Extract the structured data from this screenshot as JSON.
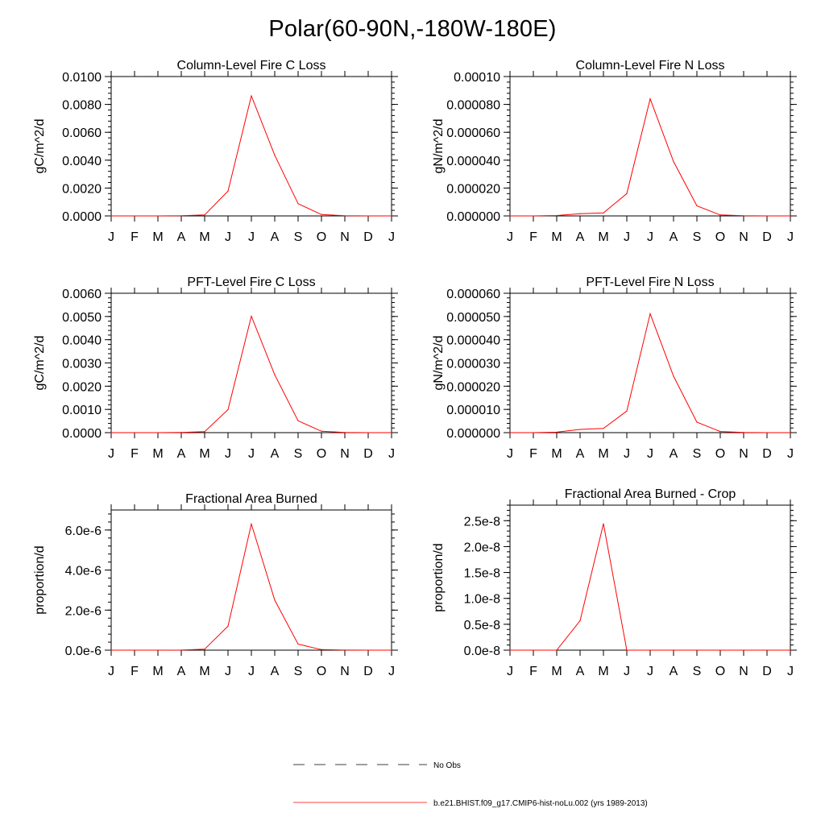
{
  "title": "Polar(60-90N,-180W-180E)",
  "months": [
    "J",
    "F",
    "M",
    "A",
    "M",
    "J",
    "J",
    "A",
    "S",
    "O",
    "N",
    "D",
    "J"
  ],
  "colors": {
    "model": "#ff0000",
    "obs": "#000000",
    "axis": "#000000"
  },
  "legend": {
    "obs_label": "No Obs",
    "model_label": "b.e21.BHIST.f09_g17.CMIP6-hist-noLu.002 (yrs 1989-2013)"
  },
  "chart_data": [
    {
      "type": "line",
      "title": "Column-Level Fire C Loss",
      "ylabel": "gC/m^2/d",
      "ylim": [
        0,
        0.01
      ],
      "yticks": [
        0,
        0.002,
        0.004,
        0.006,
        0.008,
        0.01
      ],
      "ytick_labels": [
        "0.0000",
        "0.0020",
        "0.0040",
        "0.0060",
        "0.0080",
        "0.0100"
      ],
      "grid": false,
      "series": [
        {
          "name": "b.e21.BHIST.f09_g17.CMIP6-hist-noLu.002 (yrs 1989-2013)",
          "values": [
            0,
            0,
            0,
            1e-05,
            7e-05,
            0.00178,
            0.00861,
            0.00435,
            0.00088,
            0.0001,
            1e-05,
            0,
            0
          ]
        }
      ]
    },
    {
      "type": "line",
      "title": "Column-Level Fire N Loss",
      "ylabel": "gN/m^2/d",
      "ylim": [
        0,
        0.0001
      ],
      "yticks": [
        0,
        2e-05,
        4e-05,
        6e-05,
        8e-05,
        0.0001
      ],
      "ytick_labels": [
        "0.000000",
        "0.000020",
        "0.000040",
        "0.000060",
        "0.000080",
        "0.00010"
      ],
      "grid": false,
      "series": [
        {
          "name": "b.e21.BHIST.f09_g17.CMIP6-hist-noLu.002 (yrs 1989-2013)",
          "values": [
            0,
            0,
            3e-07,
            1.6e-06,
            2.2e-06,
            1.6e-05,
            8.4e-05,
            3.9e-05,
            7.2e-06,
            7e-07,
            1e-07,
            0,
            0
          ]
        }
      ]
    },
    {
      "type": "line",
      "title": "PFT-Level Fire C Loss",
      "ylabel": "gC/m^2/d",
      "ylim": [
        0,
        0.006
      ],
      "yticks": [
        0,
        0.001,
        0.002,
        0.003,
        0.004,
        0.005,
        0.006
      ],
      "ytick_labels": [
        "0.0000",
        "0.0010",
        "0.0020",
        "0.0030",
        "0.0040",
        "0.0050",
        "0.0060"
      ],
      "grid": false,
      "series": [
        {
          "name": "b.e21.BHIST.f09_g17.CMIP6-hist-noLu.002 (yrs 1989-2013)",
          "values": [
            0,
            0,
            0,
            1e-05,
            4e-05,
            0.00099,
            0.00501,
            0.00249,
            0.00051,
            6e-05,
            1e-05,
            0,
            0
          ]
        }
      ]
    },
    {
      "type": "line",
      "title": "PFT-Level Fire N Loss",
      "ylabel": "gN/m^2/d",
      "ylim": [
        0,
        6e-05
      ],
      "yticks": [
        0,
        1e-05,
        2e-05,
        3e-05,
        4e-05,
        5e-05,
        6e-05
      ],
      "ytick_labels": [
        "0.000000",
        "0.000010",
        "0.000020",
        "0.000030",
        "0.000040",
        "0.000050",
        "0.000060"
      ],
      "grid": false,
      "series": [
        {
          "name": "b.e21.BHIST.f09_g17.CMIP6-hist-noLu.002 (yrs 1989-2013)",
          "values": [
            0,
            0,
            2e-07,
            1.4e-06,
            1.8e-06,
            9.3e-06,
            5.12e-05,
            2.43e-05,
            4.5e-06,
            5e-07,
            1e-07,
            0,
            0
          ]
        }
      ]
    },
    {
      "type": "line",
      "title": "Fractional Area Burned",
      "ylabel": "proportion/d",
      "ylim": [
        0,
        7e-06
      ],
      "yticks": [
        0,
        2e-06,
        4e-06,
        6e-06
      ],
      "ytick_labels": [
        "0.0e-6",
        "2.0e-6",
        "4.0e-6",
        "6.0e-6"
      ],
      "grid": false,
      "series": [
        {
          "name": "b.e21.BHIST.f09_g17.CMIP6-hist-noLu.002 (yrs 1989-2013)",
          "values": [
            0,
            0,
            0,
            5e-09,
            5e-08,
            1.2e-06,
            6.3e-06,
            2.5e-06,
            3e-07,
            3e-08,
            5e-09,
            0,
            0
          ]
        }
      ]
    },
    {
      "type": "line",
      "title": "Fractional Area Burned - Crop",
      "ylabel": "proportion/d",
      "ylim": [
        0,
        2.8e-08
      ],
      "yticks": [
        0,
        5e-09,
        1e-08,
        1.5e-08,
        2e-08,
        2.5e-08
      ],
      "ytick_labels": [
        "0.0e-8",
        "0.5e-8",
        "1.0e-8",
        "1.5e-8",
        "2.0e-8",
        "2.5e-8"
      ],
      "grid": false,
      "series": [
        {
          "name": "b.e21.BHIST.f09_g17.CMIP6-hist-noLu.002 (yrs 1989-2013)",
          "values": [
            0,
            0,
            0,
            5.7e-09,
            2.44e-08,
            0,
            0,
            0,
            0,
            0,
            0,
            0,
            0
          ]
        }
      ]
    }
  ]
}
